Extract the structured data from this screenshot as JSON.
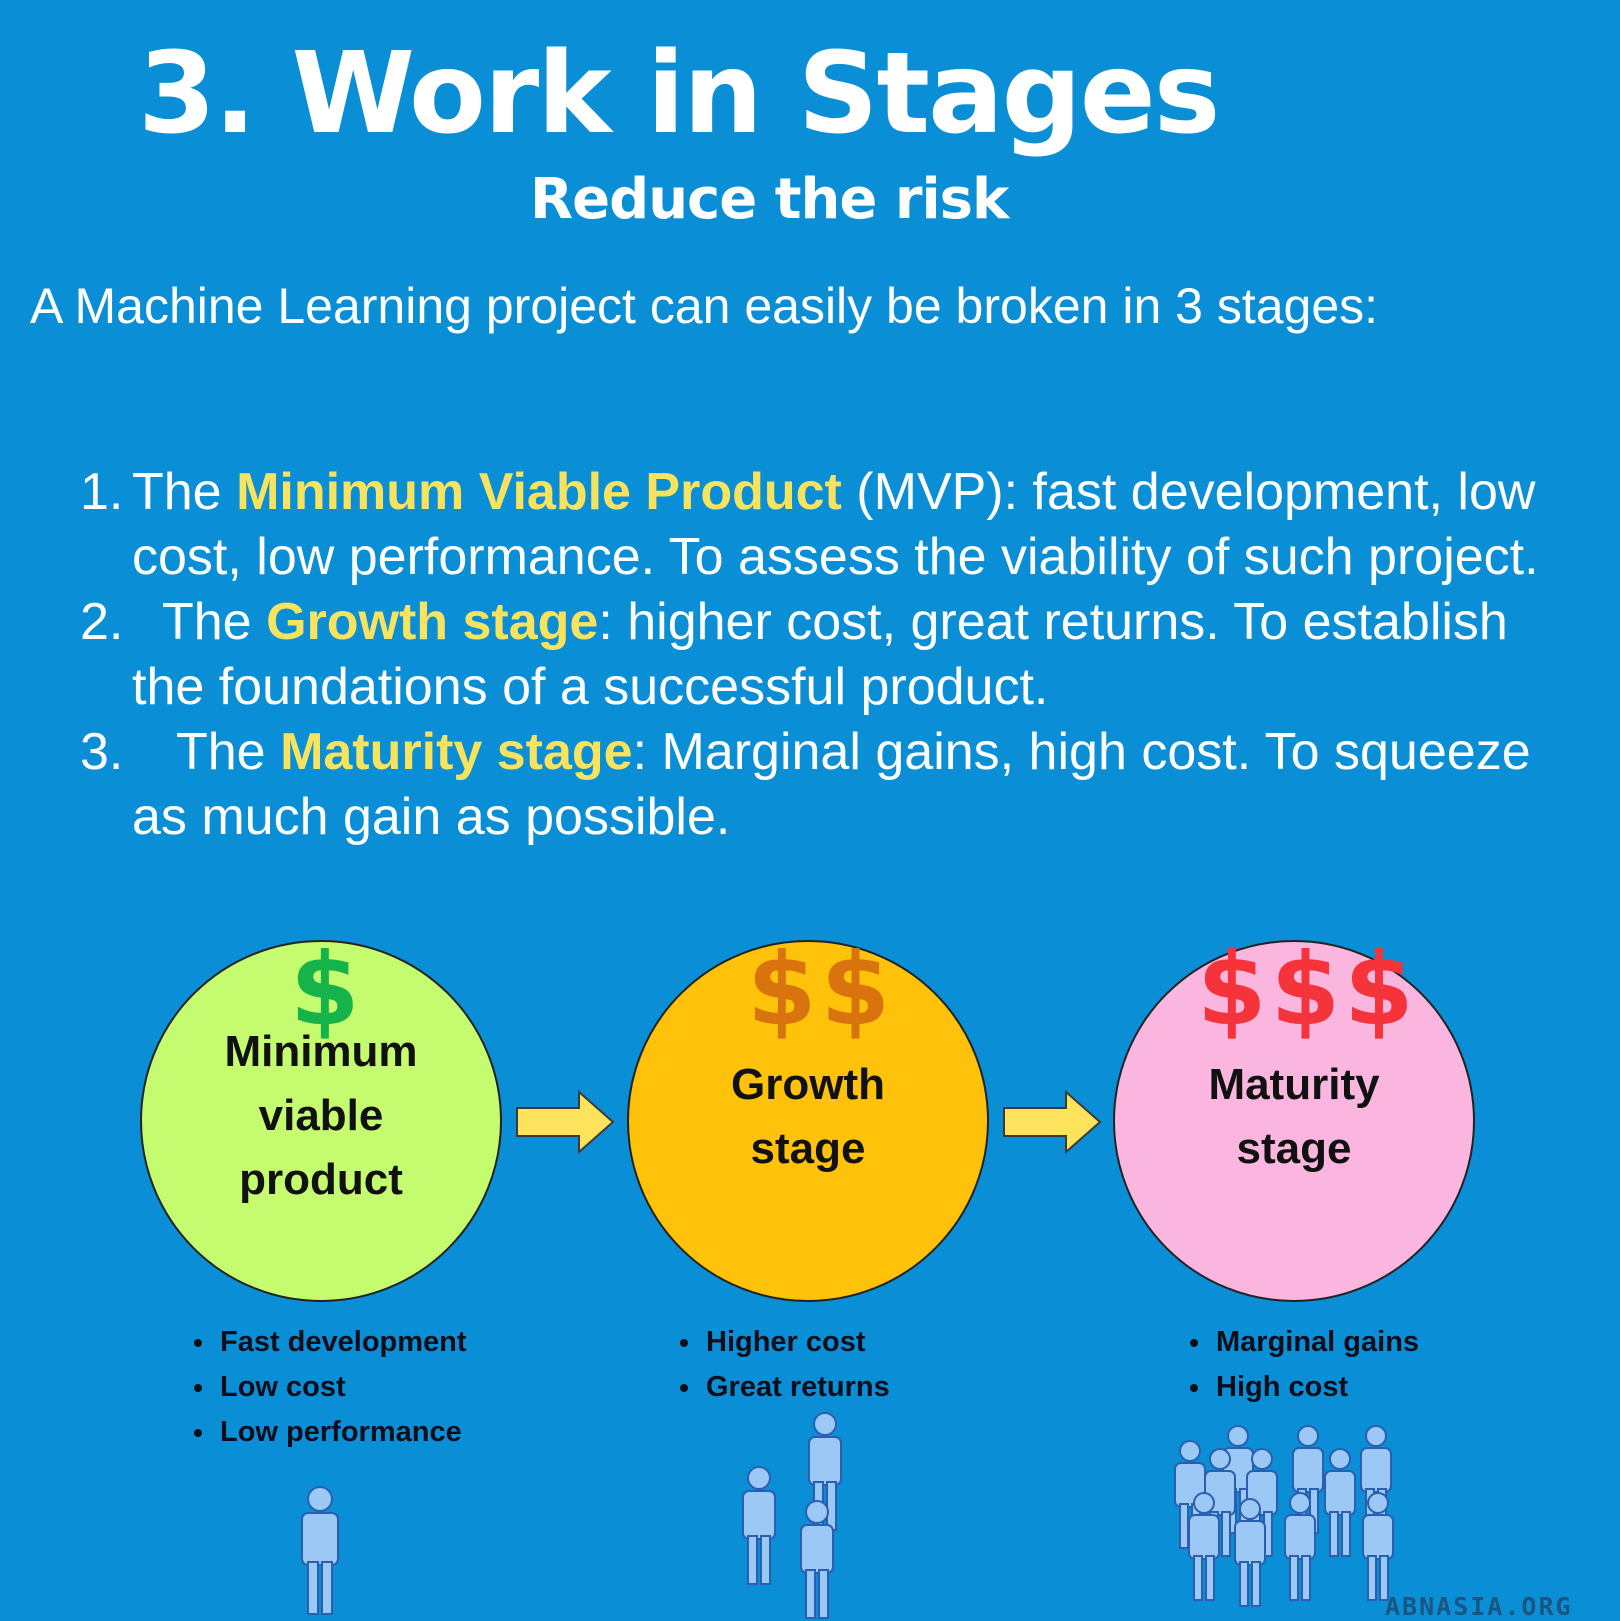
{
  "title": "3. Work in Stages",
  "subtitle": "Reduce the risk",
  "intro": "A Machine Learning project can easily be broken in 3 stages:",
  "stages": [
    {
      "num": "1.",
      "lead": "The ",
      "highlight": "Minimum Viable Product",
      "rest": " (MVP): fast development, low cost, low performance. To assess the viability of such project."
    },
    {
      "num": "2.",
      "lead": "The ",
      "highlight": "Growth stage",
      "rest": ": higher cost, great returns. To establish the foundations of a successful product."
    },
    {
      "num": "3.",
      "lead": "The ",
      "highlight": "Maturity stage",
      "rest": ": Marginal gains, high cost. To squeeze as much gain as possible."
    }
  ],
  "diagram": {
    "circles": [
      {
        "dollars": "$",
        "dollar_color": "#16b34a",
        "fill": "#c5fb6f",
        "label_lines": [
          "Minimum",
          "viable",
          "product"
        ],
        "bullets": [
          "Fast development",
          "Low cost",
          "Low performance"
        ],
        "people": 1
      },
      {
        "dollars": "$$",
        "dollar_color": "#d9730e",
        "fill": "#ffc20a",
        "label_lines": [
          "Growth",
          "stage"
        ],
        "bullets": [
          "Higher cost",
          "Great returns"
        ],
        "people": 3
      },
      {
        "dollars": "$$$",
        "dollar_color": "#f5333b",
        "fill": "#fbb6df",
        "label_lines": [
          "Maturity",
          "stage"
        ],
        "bullets": [
          "Marginal gains",
          "High cost"
        ],
        "people": 11
      }
    ],
    "arrow_color": "#fde25b"
  },
  "colors": {
    "background": "#0a8fd6",
    "highlight": "#f7e35d",
    "person": "#9cc8f5"
  },
  "icons": [
    "dollar-icon",
    "arrow-right-icon",
    "person-icon"
  ],
  "watermark": "ABNASIA.ORG"
}
